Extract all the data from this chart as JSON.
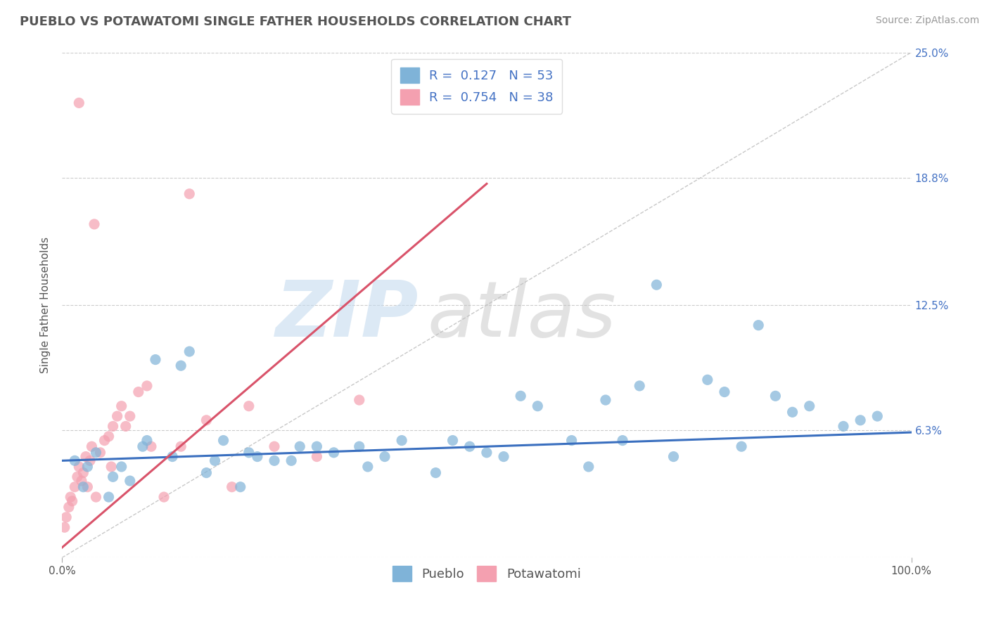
{
  "title": "PUEBLO VS POTAWATOMI SINGLE FATHER HOUSEHOLDS CORRELATION CHART",
  "source_text": "Source: ZipAtlas.com",
  "ylabel": "Single Father Households",
  "xlim": [
    0.0,
    100.0
  ],
  "ylim": [
    0.0,
    25.0
  ],
  "xticks": [
    0.0,
    100.0
  ],
  "xticklabels": [
    "0.0%",
    "100.0%"
  ],
  "yticks": [
    0.0,
    6.3,
    12.5,
    18.8,
    25.0
  ],
  "yticklabels_right": [
    "",
    "6.3%",
    "12.5%",
    "18.8%",
    "25.0%"
  ],
  "pueblo_color": "#7fb3d8",
  "potawatomi_color": "#f4a0b0",
  "pueblo_line_color": "#3a6fbf",
  "potawatomi_line_color": "#d9536a",
  "ref_line_color": "#c8c8c8",
  "pueblo_R": 0.127,
  "pueblo_N": 53,
  "potawatomi_R": 0.754,
  "potawatomi_N": 38,
  "background_color": "#ffffff",
  "grid_color": "#cccccc",
  "tick_color": "#4472c4",
  "axis_color": "#555555",
  "pueblo_scatter_x": [
    1.5,
    2.5,
    4.0,
    5.5,
    7.0,
    8.0,
    9.5,
    11.0,
    13.0,
    15.0,
    17.0,
    19.0,
    21.0,
    23.0,
    25.0,
    28.0,
    32.0,
    36.0,
    40.0,
    44.0,
    48.0,
    52.0,
    56.0,
    60.0,
    64.0,
    68.0,
    72.0,
    76.0,
    80.0,
    84.0,
    88.0,
    92.0,
    96.0,
    3.0,
    6.0,
    10.0,
    14.0,
    18.0,
    22.0,
    30.0,
    38.0,
    46.0,
    54.0,
    62.0,
    70.0,
    78.0,
    86.0,
    94.0,
    27.0,
    35.0,
    50.0,
    66.0,
    82.0
  ],
  "pueblo_scatter_y": [
    4.8,
    3.5,
    5.2,
    3.0,
    4.5,
    3.8,
    5.5,
    9.8,
    5.0,
    10.2,
    4.2,
    5.8,
    3.5,
    5.0,
    4.8,
    5.5,
    5.2,
    4.5,
    5.8,
    4.2,
    5.5,
    5.0,
    7.5,
    5.8,
    7.8,
    8.5,
    5.0,
    8.8,
    5.5,
    8.0,
    7.5,
    6.5,
    7.0,
    4.5,
    4.0,
    5.8,
    9.5,
    4.8,
    5.2,
    5.5,
    5.0,
    5.8,
    8.0,
    4.5,
    13.5,
    8.2,
    7.2,
    6.8,
    4.8,
    5.5,
    5.2,
    5.8,
    11.5
  ],
  "potawatomi_scatter_x": [
    0.3,
    0.5,
    0.8,
    1.0,
    1.2,
    1.5,
    1.8,
    2.0,
    2.3,
    2.5,
    2.8,
    3.0,
    3.3,
    3.5,
    4.0,
    4.5,
    5.0,
    5.5,
    6.0,
    6.5,
    7.0,
    8.0,
    9.0,
    10.0,
    12.0,
    14.0,
    17.0,
    20.0,
    25.0,
    30.0,
    35.0,
    2.0,
    3.8,
    5.8,
    7.5,
    10.5,
    15.0,
    22.0
  ],
  "potawatomi_scatter_y": [
    1.5,
    2.0,
    2.5,
    3.0,
    2.8,
    3.5,
    4.0,
    4.5,
    3.8,
    4.2,
    5.0,
    3.5,
    4.8,
    5.5,
    3.0,
    5.2,
    5.8,
    6.0,
    6.5,
    7.0,
    7.5,
    7.0,
    8.2,
    8.5,
    3.0,
    5.5,
    6.8,
    3.5,
    5.5,
    5.0,
    7.8,
    22.5,
    16.5,
    4.5,
    6.5,
    5.5,
    18.0,
    7.5
  ],
  "pueblo_trend_x": [
    0.0,
    100.0
  ],
  "pueblo_trend_y": [
    4.8,
    6.2
  ],
  "potawatomi_trend_x": [
    0.0,
    50.0
  ],
  "potawatomi_trend_y": [
    0.5,
    18.5
  ],
  "ref_line_x": [
    0.0,
    100.0
  ],
  "ref_line_y": [
    0.0,
    25.0
  ],
  "title_fontsize": 13,
  "axis_label_fontsize": 11,
  "tick_fontsize": 11,
  "legend_fontsize": 13,
  "source_fontsize": 10,
  "watermark_zip": "ZIP",
  "watermark_atlas": "atlas",
  "watermark_zip_color": "#c6dbef",
  "watermark_atlas_color": "#c0c0c0"
}
